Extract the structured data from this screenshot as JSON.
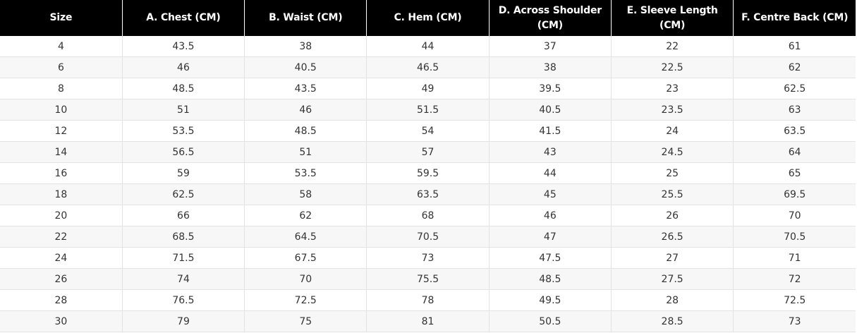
{
  "table": {
    "headers": [
      "Size",
      "A. Chest (CM)",
      "B. Waist (CM)",
      "C. Hem (CM)",
      "D. Across Shoulder (CM)",
      "E. Sleeve Length (CM)",
      "F. Centre Back (CM)"
    ],
    "rows": [
      [
        "4",
        "43.5",
        "38",
        "44",
        "37",
        "22",
        "61"
      ],
      [
        "6",
        "46",
        "40.5",
        "46.5",
        "38",
        "22.5",
        "62"
      ],
      [
        "8",
        "48.5",
        "43.5",
        "49",
        "39.5",
        "23",
        "62.5"
      ],
      [
        "10",
        "51",
        "46",
        "51.5",
        "40.5",
        "23.5",
        "63"
      ],
      [
        "12",
        "53.5",
        "48.5",
        "54",
        "41.5",
        "24",
        "63.5"
      ],
      [
        "14",
        "56.5",
        "51",
        "57",
        "43",
        "24.5",
        "64"
      ],
      [
        "16",
        "59",
        "53.5",
        "59.5",
        "44",
        "25",
        "65"
      ],
      [
        "18",
        "62.5",
        "58",
        "63.5",
        "45",
        "25.5",
        "69.5"
      ],
      [
        "20",
        "66",
        "62",
        "68",
        "46",
        "26",
        "70"
      ],
      [
        "22",
        "68.5",
        "64.5",
        "70.5",
        "47",
        "26.5",
        "70.5"
      ],
      [
        "24",
        "71.5",
        "67.5",
        "73",
        "47.5",
        "27",
        "71"
      ],
      [
        "26",
        "74",
        "70",
        "75.5",
        "48.5",
        "27.5",
        "72"
      ],
      [
        "28",
        "76.5",
        "72.5",
        "78",
        "49.5",
        "28",
        "72.5"
      ],
      [
        "30",
        "79",
        "75",
        "81",
        "50.5",
        "28.5",
        "73"
      ]
    ]
  },
  "colors": {
    "header_bg": "#000000",
    "header_text": "#ffffff",
    "row_alt_bg": "#f7f7f7",
    "cell_border": "#e3e3e3",
    "cell_text": "#333333"
  }
}
